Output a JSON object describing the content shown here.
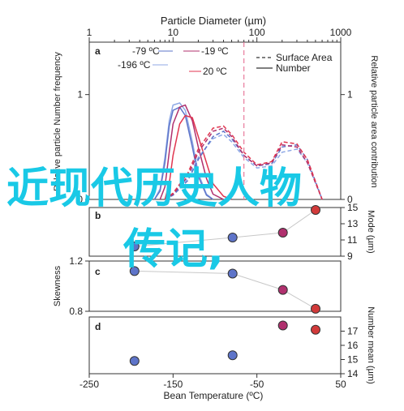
{
  "chart_data": [
    {
      "panel": "a",
      "type": "line",
      "title": "Particle Diameter (µm)",
      "xlabel": "Particle Diameter (µm)",
      "ylabel_left": "Relative particle Number frequency",
      "ylabel_right": "Relative particle area contribution",
      "x_scale": "log",
      "xlim": [
        1,
        1000
      ],
      "x_ticks": [
        "1",
        "10",
        "100",
        "1000"
      ],
      "ylim": [
        0,
        1.5
      ],
      "y_ticks_left": [
        "0",
        "1"
      ],
      "y_ticks_right": [
        "0",
        "1"
      ],
      "legend": [
        "Surface Area",
        "Number"
      ],
      "annotations": [
        "-79 ºC",
        "-196 ºC",
        "-19 ºC",
        "20 ºC"
      ],
      "vertical_reference_line_x": 70,
      "series": [
        {
          "name": "-196 ºC",
          "kind": "number",
          "color": "#8fa9e6",
          "x": [
            6,
            7,
            8,
            9,
            10,
            12,
            14,
            17,
            20,
            25,
            30
          ],
          "y": [
            0,
            0.1,
            0.4,
            0.75,
            0.9,
            0.92,
            0.85,
            0.55,
            0.25,
            0.05,
            0
          ]
        },
        {
          "name": "-79 ºC",
          "kind": "number",
          "color": "#5e74c9",
          "x": [
            6,
            7,
            8,
            9,
            10,
            12,
            14,
            17,
            20,
            25,
            30
          ],
          "y": [
            0,
            0.08,
            0.35,
            0.7,
            0.85,
            0.88,
            0.8,
            0.5,
            0.22,
            0.04,
            0
          ]
        },
        {
          "name": "-19 ºC",
          "kind": "number",
          "color": "#b0306e",
          "x": [
            7,
            8,
            9,
            10,
            12,
            14,
            17,
            20,
            25,
            30,
            40
          ],
          "y": [
            0,
            0.12,
            0.45,
            0.72,
            0.88,
            0.9,
            0.75,
            0.5,
            0.2,
            0.05,
            0
          ]
        },
        {
          "name": "20 ºC",
          "kind": "number",
          "color": "#e0354f",
          "x": [
            8,
            9,
            10,
            12,
            14,
            17,
            20,
            25,
            30,
            40,
            50
          ],
          "y": [
            0,
            0.15,
            0.42,
            0.72,
            0.8,
            0.78,
            0.6,
            0.35,
            0.15,
            0.03,
            0
          ]
        },
        {
          "name": "-196 ºC",
          "kind": "surface",
          "color": "#8fa9e6",
          "x": [
            8,
            10,
            15,
            20,
            30,
            40,
            50,
            70,
            100,
            150,
            200,
            300,
            400,
            600
          ],
          "y": [
            0,
            0.05,
            0.2,
            0.4,
            0.58,
            0.62,
            0.55,
            0.4,
            0.3,
            0.32,
            0.45,
            0.48,
            0.35,
            0
          ]
        },
        {
          "name": "-79 ºC",
          "kind": "surface",
          "color": "#5e74c9",
          "x": [
            8,
            10,
            15,
            20,
            30,
            40,
            50,
            70,
            100,
            150,
            200,
            300,
            400,
            600
          ],
          "y": [
            0,
            0.04,
            0.18,
            0.38,
            0.6,
            0.65,
            0.58,
            0.42,
            0.32,
            0.34,
            0.5,
            0.52,
            0.38,
            0
          ]
        },
        {
          "name": "-19 ºC",
          "kind": "surface",
          "color": "#b0306e",
          "x": [
            8,
            10,
            15,
            20,
            30,
            40,
            50,
            70,
            100,
            150,
            200,
            300,
            400,
            600
          ],
          "y": [
            0,
            0.05,
            0.22,
            0.45,
            0.65,
            0.68,
            0.6,
            0.42,
            0.32,
            0.35,
            0.52,
            0.5,
            0.35,
            0
          ]
        },
        {
          "name": "20 ºC",
          "kind": "surface",
          "color": "#e0354f",
          "x": [
            8,
            10,
            15,
            20,
            30,
            40,
            50,
            70,
            100,
            150,
            200,
            300,
            400,
            600
          ],
          "y": [
            0,
            0.06,
            0.25,
            0.48,
            0.68,
            0.7,
            0.62,
            0.45,
            0.33,
            0.36,
            0.55,
            0.53,
            0.38,
            0
          ]
        }
      ]
    },
    {
      "panel": "b",
      "type": "scatter",
      "ylabel": "Mode (µm)",
      "ylim": [
        9,
        15
      ],
      "y_ticks": [
        "9",
        "11",
        "13",
        "15"
      ],
      "x": [
        -196,
        -79,
        -19,
        20
      ],
      "y": [
        10.2,
        11.3,
        11.9,
        14.7
      ],
      "colors": [
        "#5e74c9",
        "#5e74c9",
        "#b0306e",
        "#d23a3a"
      ]
    },
    {
      "panel": "c",
      "type": "scatter",
      "ylabel": "Skewness",
      "ylim": [
        0.8,
        1.2
      ],
      "y_ticks": [
        "0.8",
        "1.2"
      ],
      "x": [
        -196,
        -79,
        -19,
        20
      ],
      "y": [
        1.12,
        1.1,
        0.97,
        0.82
      ],
      "colors": [
        "#5e74c9",
        "#5e74c9",
        "#b0306e",
        "#d23a3a"
      ]
    },
    {
      "panel": "d",
      "type": "scatter",
      "ylabel": "Number mean (µm)",
      "ylim": [
        14,
        18
      ],
      "y_ticks": [
        "14",
        "15",
        "16",
        "17"
      ],
      "xlabel": "Bean Temperature (ºC)",
      "xlim": [
        -250,
        50
      ],
      "x_ticks": [
        "-250",
        "-150",
        "-50",
        "50"
      ],
      "x": [
        -196,
        -79,
        -19,
        20
      ],
      "y": [
        14.9,
        15.3,
        17.4,
        17.1
      ],
      "colors": [
        "#5e74c9",
        "#5e74c9",
        "#b0306e",
        "#d23a3a"
      ]
    }
  ],
  "overlay": {
    "line1": "近现代历史人物",
    "line2": "传记,"
  }
}
